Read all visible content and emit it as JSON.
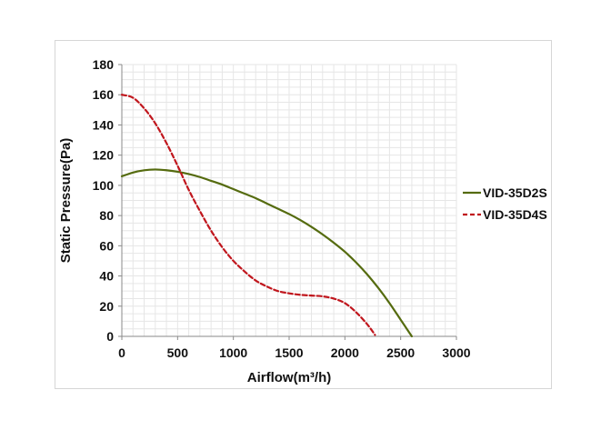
{
  "chart_data": {
    "type": "line",
    "title": "",
    "xlabel": "Airflow(m³/h)",
    "ylabel": "Static Pressure(Pa)",
    "xlim": [
      0,
      3000
    ],
    "ylim": [
      0,
      180
    ],
    "xticks": [
      "0",
      "500",
      "1000",
      "1500",
      "2000",
      "2500",
      "3000"
    ],
    "yticks": [
      "0",
      "20",
      "40",
      "60",
      "80",
      "100",
      "120",
      "140",
      "160",
      "180"
    ],
    "grid": true,
    "legend_position": "right",
    "series": [
      {
        "name": "VID-35D2S",
        "color": "#556b0f",
        "dash": "solid",
        "x": [
          0,
          100,
          200,
          300,
          400,
          500,
          600,
          700,
          800,
          900,
          1000,
          1100,
          1200,
          1300,
          1400,
          1500,
          1600,
          1700,
          1800,
          1900,
          2000,
          2100,
          2200,
          2300,
          2400,
          2500,
          2550,
          2600
        ],
        "y": [
          106,
          108.5,
          110,
          110.5,
          110,
          109,
          107.5,
          105.5,
          103,
          100.5,
          97.5,
          94.5,
          91.5,
          88,
          84.5,
          81,
          77,
          72.5,
          67.5,
          62,
          56,
          49,
          41,
          32,
          22,
          11,
          5.5,
          0
        ]
      },
      {
        "name": "VID-35D4S",
        "color": "#c0161d",
        "dash": "dashed",
        "x": [
          0,
          100,
          200,
          300,
          400,
          500,
          600,
          700,
          800,
          900,
          1000,
          1100,
          1200,
          1300,
          1400,
          1500,
          1600,
          1700,
          1800,
          1900,
          2000,
          2100,
          2200,
          2270
        ],
        "y": [
          160,
          158,
          151,
          141,
          128,
          113,
          97,
          83,
          70,
          59,
          50,
          43,
          37,
          33,
          30,
          28.5,
          27.5,
          27,
          26.5,
          25,
          22,
          16,
          8,
          1
        ]
      }
    ]
  }
}
